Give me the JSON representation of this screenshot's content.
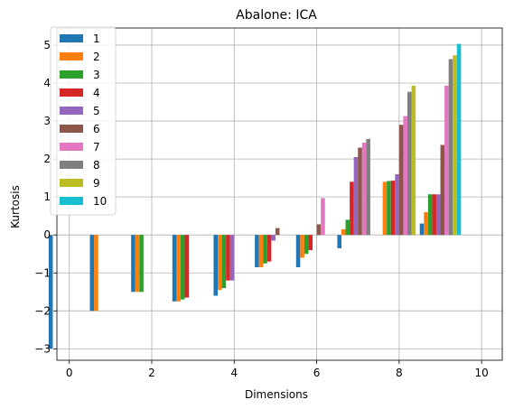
{
  "chart_data": {
    "type": "bar",
    "title": "Abalone: ICA",
    "xlabel": "Dimensions",
    "ylabel": "Kurtosis",
    "xlim": [
      -0.3,
      10.5
    ],
    "ylim": [
      -3.3,
      5.45
    ],
    "xticks": [
      0,
      2,
      4,
      6,
      8,
      10
    ],
    "xtick_labels": [
      "0",
      "2",
      "4",
      "6",
      "8",
      "10"
    ],
    "yticks": [
      -3,
      -2,
      -1,
      0,
      1,
      2,
      3,
      4,
      5
    ],
    "ytick_labels": [
      "−3",
      "−2",
      "−1",
      "0",
      "1",
      "2",
      "3",
      "4",
      "5"
    ],
    "grid": true,
    "legend_position": "top-left",
    "bar_width": 0.1,
    "categories": [
      0,
      1,
      2,
      3,
      4,
      5,
      6,
      7,
      8,
      9,
      10
    ],
    "series": [
      {
        "name": "1",
        "color": "#1f77b4",
        "values": [
          -3.0,
          -2.0,
          -1.5,
          -1.75,
          -1.6,
          -0.85,
          -0.85,
          -0.35,
          0.0,
          0.3,
          0.0
        ]
      },
      {
        "name": "2",
        "color": "#ff7f0e",
        "values": [
          0.0,
          -2.0,
          -1.5,
          -1.75,
          -1.45,
          -0.85,
          -0.6,
          0.15,
          1.4,
          0.6,
          0.0
        ]
      },
      {
        "name": "3",
        "color": "#2ca02c",
        "values": [
          0.0,
          0.0,
          -1.5,
          -1.7,
          -1.4,
          -0.75,
          -0.5,
          0.4,
          1.42,
          1.07,
          0.0
        ]
      },
      {
        "name": "4",
        "color": "#d62728",
        "values": [
          0.0,
          0.0,
          0.0,
          -1.65,
          -1.2,
          -0.7,
          -0.4,
          1.4,
          1.43,
          1.07,
          0.0
        ]
      },
      {
        "name": "5",
        "color": "#9467bd",
        "values": [
          0.0,
          0.0,
          0.0,
          0.0,
          -1.2,
          -0.15,
          0.0,
          2.05,
          1.6,
          1.07,
          0.0
        ]
      },
      {
        "name": "6",
        "color": "#8c564b",
        "values": [
          0.0,
          0.0,
          0.0,
          0.0,
          0.0,
          0.18,
          0.28,
          2.3,
          2.9,
          2.37,
          0.0
        ]
      },
      {
        "name": "7",
        "color": "#e377c2",
        "values": [
          0.0,
          0.0,
          0.0,
          0.0,
          0.0,
          0.0,
          0.97,
          2.43,
          3.13,
          3.93,
          0.0
        ]
      },
      {
        "name": "8",
        "color": "#7f7f7f",
        "values": [
          0.0,
          0.0,
          0.0,
          0.0,
          0.0,
          0.0,
          0.0,
          2.53,
          3.77,
          4.63,
          0.0
        ]
      },
      {
        "name": "9",
        "color": "#bcbd22",
        "values": [
          0.0,
          0.0,
          0.0,
          0.0,
          0.0,
          0.0,
          0.0,
          0.0,
          3.93,
          4.73,
          0.0
        ]
      },
      {
        "name": "10",
        "color": "#17becf",
        "values": [
          0.0,
          0.0,
          0.0,
          0.0,
          0.0,
          0.0,
          0.0,
          0.0,
          0.0,
          5.03,
          0.0
        ]
      }
    ]
  }
}
